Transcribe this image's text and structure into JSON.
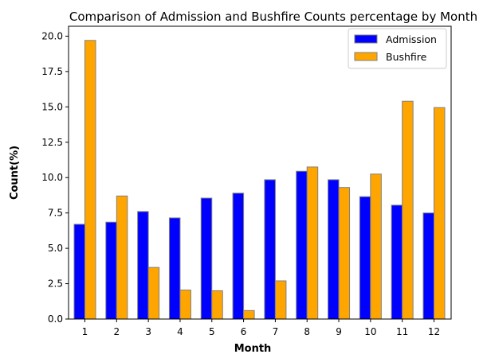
{
  "chart_data": {
    "type": "bar",
    "title": "Comparison of Admission and Bushfire Counts percentage by Month",
    "xlabel": "Month",
    "ylabel": "Count(%)",
    "categories": [
      "1",
      "2",
      "3",
      "4",
      "5",
      "6",
      "7",
      "8",
      "9",
      "10",
      "11",
      "12"
    ],
    "ylim": [
      0,
      20.7
    ],
    "yticks": [
      "0.0",
      "2.5",
      "5.0",
      "7.5",
      "10.0",
      "12.5",
      "15.0",
      "17.5",
      "20.0"
    ],
    "grid": false,
    "legend_position": "top-right",
    "series": [
      {
        "name": "Admission",
        "color": "#0000ff",
        "values": [
          6.7,
          6.85,
          7.6,
          7.15,
          8.55,
          8.9,
          9.85,
          10.45,
          9.85,
          8.65,
          8.05,
          7.5
        ]
      },
      {
        "name": "Bushfire",
        "color": "#ffa500",
        "values": [
          19.7,
          8.7,
          3.65,
          2.05,
          2.0,
          0.6,
          2.7,
          10.75,
          9.3,
          10.25,
          15.4,
          14.95
        ]
      }
    ],
    "bar_edge_color": "#808080"
  }
}
